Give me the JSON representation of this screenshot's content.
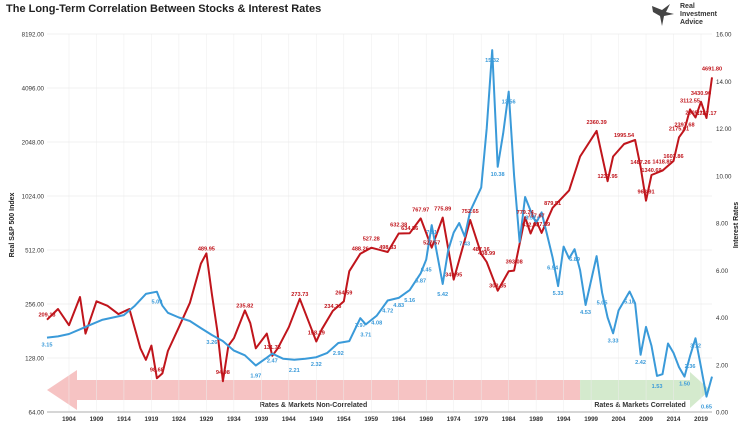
{
  "title": "The Long-Term Correlation Between Stocks & Interest Rates",
  "logo": {
    "line1": "Real",
    "line2": "Investment",
    "line3": "Advice"
  },
  "chart_data": {
    "type": "line",
    "ylabel_left": "Real S&P 500 Index",
    "ylabel_right": "Interest Rates",
    "left_ticks": [
      "64.00",
      "128.00",
      "256.00",
      "512.00",
      "1024.00",
      "2048.00",
      "4096.00",
      "8192.00"
    ],
    "right_ticks": [
      "0.00",
      "2.00",
      "4.00",
      "6.00",
      "8.00",
      "10.00",
      "12.00",
      "14.00",
      "16.00"
    ],
    "x_ticks": [
      "1904",
      "1909",
      "1914",
      "1919",
      "1924",
      "1929",
      "1934",
      "1939",
      "1944",
      "1949",
      "1954",
      "1959",
      "1964",
      "1969",
      "1974",
      "1979",
      "1984",
      "1989",
      "1994",
      "1999",
      "2004",
      "2009",
      "2014",
      "2019"
    ],
    "xlim": [
      1900,
      2021
    ],
    "ylim_left": [
      64,
      8192
    ],
    "ylim_right": [
      0,
      16
    ],
    "grid": true,
    "colors": {
      "stocks": "#c0151c",
      "rates": "#3a9ad9",
      "noncorr": "#f5b9b9",
      "corr": "#cfe8c8"
    },
    "bands": [
      {
        "label": "Rates & Markets Non-Correlated",
        "from": 1900,
        "to": 1997
      },
      {
        "label": "Rates & Markets Correlated",
        "from": 1997,
        "to": 2021
      }
    ],
    "series": [
      {
        "key": "stocks",
        "axis": "left",
        "points": [
          [
            1900,
            209.18
          ],
          [
            1902,
            240
          ],
          [
            1904,
            195
          ],
          [
            1906,
            280
          ],
          [
            1907,
            175
          ],
          [
            1909,
            265
          ],
          [
            1911,
            250
          ],
          [
            1913,
            225
          ],
          [
            1915,
            240
          ],
          [
            1917,
            145
          ],
          [
            1918,
            125
          ],
          [
            1919,
            150
          ],
          [
            1920,
            98.68
          ],
          [
            1921,
            105
          ],
          [
            1922,
            140
          ],
          [
            1924,
            190
          ],
          [
            1926,
            260
          ],
          [
            1928,
            430
          ],
          [
            1929,
            489.95
          ],
          [
            1930,
            290
          ],
          [
            1931,
            180
          ],
          [
            1932,
            94.98
          ],
          [
            1933,
            150
          ],
          [
            1934,
            165
          ],
          [
            1936,
            235.82
          ],
          [
            1937,
            200
          ],
          [
            1938,
            145
          ],
          [
            1940,
            175
          ],
          [
            1941,
            131.75
          ],
          [
            1942,
            145
          ],
          [
            1944,
            190
          ],
          [
            1946,
            273.73
          ],
          [
            1948,
            190
          ],
          [
            1949,
            158.29
          ],
          [
            1950,
            185
          ],
          [
            1952,
            234.26
          ],
          [
            1954,
            264.59
          ],
          [
            1955,
            390
          ],
          [
            1957,
            488.26
          ],
          [
            1959,
            527.28
          ],
          [
            1962,
            498.83
          ],
          [
            1964,
            632.38
          ],
          [
            1966,
            634.86
          ],
          [
            1968,
            767.97
          ],
          [
            1970,
            527.57
          ],
          [
            1972,
            775.89
          ],
          [
            1974,
            349.95
          ],
          [
            1976,
            580
          ],
          [
            1977,
            752.65
          ],
          [
            1979,
            487.16
          ],
          [
            1980,
            438.99
          ],
          [
            1982,
            303.85
          ],
          [
            1984,
            390
          ],
          [
            1985,
            393.08
          ],
          [
            1987,
            779.74
          ],
          [
            1988,
            632.98
          ],
          [
            1989,
            747.67
          ],
          [
            1990,
            637.89
          ],
          [
            1992,
            879.51
          ],
          [
            1995,
            1100
          ],
          [
            1997,
            1700
          ],
          [
            2000,
            2360.39
          ],
          [
            2002,
            1237.95
          ],
          [
            2003,
            1700
          ],
          [
            2005,
            1995.54
          ],
          [
            2007,
            2100
          ],
          [
            2008,
            1487.26
          ],
          [
            2009,
            963.91
          ],
          [
            2010,
            1340.69
          ],
          [
            2012,
            1418.85
          ],
          [
            2014,
            1603.86
          ],
          [
            2015,
            2175.01
          ],
          [
            2016,
            2397.68
          ],
          [
            2017,
            3112.55
          ],
          [
            2018,
            2805.12
          ],
          [
            2019,
            3430.9
          ],
          [
            2020,
            2787.17
          ],
          [
            2021,
            4691.8
          ]
        ]
      },
      {
        "key": "rates",
        "axis": "right",
        "points": [
          [
            1900,
            3.15
          ],
          [
            1902,
            3.2
          ],
          [
            1904,
            3.3
          ],
          [
            1906,
            3.5
          ],
          [
            1908,
            3.7
          ],
          [
            1910,
            3.9
          ],
          [
            1912,
            4.0
          ],
          [
            1914,
            4.1
          ],
          [
            1916,
            4.5
          ],
          [
            1918,
            5.0
          ],
          [
            1920,
            5.09
          ],
          [
            1921,
            4.5
          ],
          [
            1922,
            4.2
          ],
          [
            1924,
            4.0
          ],
          [
            1926,
            3.85
          ],
          [
            1928,
            3.55
          ],
          [
            1930,
            3.26
          ],
          [
            1932,
            3.0
          ],
          [
            1934,
            2.6
          ],
          [
            1936,
            2.4
          ],
          [
            1938,
            1.97
          ],
          [
            1940,
            2.3
          ],
          [
            1941,
            2.47
          ],
          [
            1943,
            2.25
          ],
          [
            1945,
            2.21
          ],
          [
            1947,
            2.25
          ],
          [
            1949,
            2.32
          ],
          [
            1951,
            2.5
          ],
          [
            1953,
            2.92
          ],
          [
            1955,
            3.0
          ],
          [
            1957,
            3.97
          ],
          [
            1958,
            3.71
          ],
          [
            1960,
            4.08
          ],
          [
            1962,
            4.72
          ],
          [
            1964,
            4.83
          ],
          [
            1966,
            5.16
          ],
          [
            1968,
            5.87
          ],
          [
            1969,
            6.45
          ],
          [
            1970,
            7.91
          ],
          [
            1972,
            5.42
          ],
          [
            1973,
            6.85
          ],
          [
            1974,
            7.6
          ],
          [
            1975,
            8.0
          ],
          [
            1976,
            7.43
          ],
          [
            1977,
            8.5
          ],
          [
            1979,
            9.5
          ],
          [
            1980,
            12.0
          ],
          [
            1981,
            15.32
          ],
          [
            1982,
            10.38
          ],
          [
            1983,
            11.8
          ],
          [
            1984,
            13.56
          ],
          [
            1985,
            10.0
          ],
          [
            1986,
            7.2
          ],
          [
            1987,
            9.1
          ],
          [
            1988,
            8.52
          ],
          [
            1989,
            8.0
          ],
          [
            1990,
            8.45
          ],
          [
            1991,
            7.5
          ],
          [
            1992,
            6.54
          ],
          [
            1993,
            5.33
          ],
          [
            1994,
            7.0
          ],
          [
            1995,
            6.5
          ],
          [
            1996,
            6.89
          ],
          [
            1997,
            6.0
          ],
          [
            1998,
            4.53
          ],
          [
            2000,
            6.6
          ],
          [
            2001,
            5.05
          ],
          [
            2002,
            4.0
          ],
          [
            2003,
            3.33
          ],
          [
            2004,
            4.3
          ],
          [
            2006,
            5.1
          ],
          [
            2007,
            4.6
          ],
          [
            2008,
            2.42
          ],
          [
            2009,
            3.6
          ],
          [
            2010,
            2.8
          ],
          [
            2011,
            1.53
          ],
          [
            2012,
            1.6
          ],
          [
            2013,
            2.9
          ],
          [
            2014,
            2.5
          ],
          [
            2015,
            1.9
          ],
          [
            2016,
            1.5
          ],
          [
            2017,
            2.36
          ],
          [
            2018,
            3.12
          ],
          [
            2019,
            1.9
          ],
          [
            2020,
            0.65
          ],
          [
            2021,
            1.5
          ]
        ]
      }
    ],
    "stock_labels": [
      [
        1900,
        209.18
      ],
      [
        1920,
        98.68
      ],
      [
        1929,
        489.95
      ],
      [
        1932,
        94.98
      ],
      [
        1936,
        235.82
      ],
      [
        1941,
        131.75
      ],
      [
        1946,
        273.73
      ],
      [
        1949,
        158.29
      ],
      [
        1952,
        234.26
      ],
      [
        1954,
        264.59
      ],
      [
        1957,
        488.26
      ],
      [
        1959,
        527.28
      ],
      [
        1962,
        498.83
      ],
      [
        1964,
        632.38
      ],
      [
        1966,
        634.86
      ],
      [
        1968,
        767.97
      ],
      [
        1970,
        527.57
      ],
      [
        1972,
        775.89
      ],
      [
        1974,
        349.95
      ],
      [
        1977,
        752.65
      ],
      [
        1979,
        487.16
      ],
      [
        1980,
        438.99
      ],
      [
        1982,
        303.85
      ],
      [
        1985,
        393.08
      ],
      [
        1987,
        779.74
      ],
      [
        1988,
        632.98
      ],
      [
        1989,
        747.67
      ],
      [
        1990,
        637.89
      ],
      [
        1992,
        879.51
      ],
      [
        2000,
        2360.39
      ],
      [
        2002,
        1237.95
      ],
      [
        2005,
        1995.54
      ],
      [
        2008,
        1487.26
      ],
      [
        2009,
        963.91
      ],
      [
        2010,
        1340.69
      ],
      [
        2012,
        1418.85
      ],
      [
        2014,
        1603.86
      ],
      [
        2015,
        2175.01
      ],
      [
        2016,
        2397.68
      ],
      [
        2017,
        3112.55
      ],
      [
        2018,
        2805.12
      ],
      [
        2019,
        3430.9
      ],
      [
        2020,
        2787.17
      ],
      [
        2021,
        4691.8
      ]
    ],
    "rate_labels": [
      [
        1900,
        3.15
      ],
      [
        1920,
        5.09
      ],
      [
        1930,
        3.26
      ],
      [
        1938,
        1.97
      ],
      [
        1941,
        2.47
      ],
      [
        1945,
        2.21
      ],
      [
        1949,
        2.32
      ],
      [
        1953,
        2.92
      ],
      [
        1957,
        3.97
      ],
      [
        1958,
        3.71
      ],
      [
        1960,
        4.08
      ],
      [
        1962,
        4.72
      ],
      [
        1964,
        4.83
      ],
      [
        1966,
        5.16
      ],
      [
        1968,
        5.87
      ],
      [
        1969,
        6.45
      ],
      [
        1970,
        7.91
      ],
      [
        1972,
        5.42
      ],
      [
        1976,
        7.43
      ],
      [
        1981,
        15.32
      ],
      [
        1982,
        10.38
      ],
      [
        1984,
        13.56
      ],
      [
        1988,
        8.52
      ],
      [
        1992,
        6.54
      ],
      [
        1993,
        5.33
      ],
      [
        1996,
        6.89
      ],
      [
        1998,
        4.53
      ],
      [
        2001,
        5.05
      ],
      [
        2003,
        3.33
      ],
      [
        2006,
        5.1
      ],
      [
        2008,
        2.42
      ],
      [
        2011,
        1.53
      ],
      [
        2016,
        1.5
      ],
      [
        2017,
        2.36
      ],
      [
        2018,
        3.12
      ],
      [
        2020,
        0.65
      ]
    ]
  }
}
